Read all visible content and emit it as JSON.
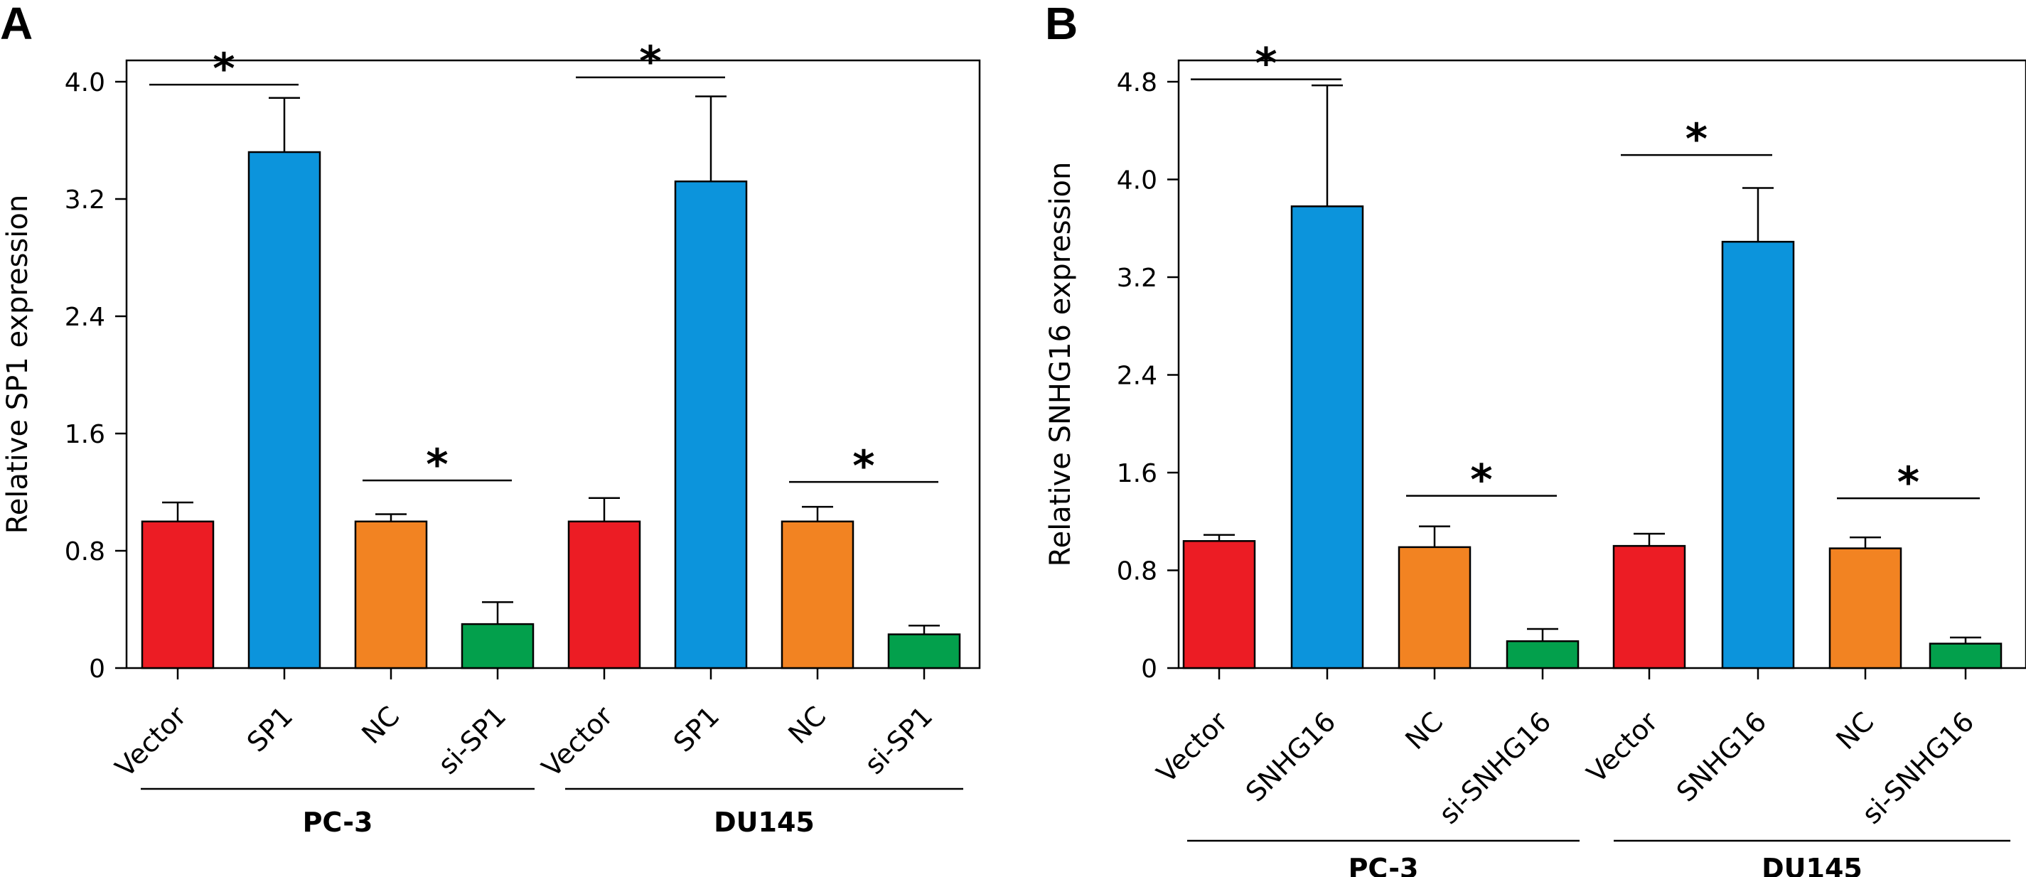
{
  "chart_data": [
    {
      "panel": "A",
      "type": "bar",
      "categories": [
        "Vector",
        "SP1",
        "NC",
        "si-SP1",
        "Vector",
        "SP1",
        "NC",
        "si-SP1"
      ],
      "groups": [
        {
          "label": "PC-3",
          "members": [
            0,
            1,
            2,
            3
          ]
        },
        {
          "label": "DU145",
          "members": [
            4,
            5,
            6,
            7
          ]
        }
      ],
      "values": [
        1.0,
        3.52,
        1.0,
        0.3,
        1.0,
        3.32,
        1.0,
        0.23
      ],
      "errors": [
        0.13,
        0.37,
        0.05,
        0.15,
        0.16,
        0.58,
        0.1,
        0.06
      ],
      "colors": [
        "#ec1c24",
        "#0c94dc",
        "#f28322",
        "#03a04c",
        "#ec1c24",
        "#0c94dc",
        "#f28322",
        "#03a04c"
      ],
      "ylabel": "Relative SP1 expression",
      "ylim": [
        0,
        4.0
      ],
      "yticks": [
        0,
        0.8,
        1.6,
        2.4,
        3.2,
        4.0
      ],
      "ytick_labels": [
        "0",
        "0.8",
        "1.6",
        "2.4",
        "3.2",
        "4.0"
      ],
      "significance": [
        {
          "from": 0,
          "to": 1,
          "label": "*",
          "y": 3.98
        },
        {
          "from": 2,
          "to": 3,
          "label": "*",
          "y": 1.28
        },
        {
          "from": 4,
          "to": 5,
          "label": "*",
          "y": 4.03
        },
        {
          "from": 6,
          "to": 7,
          "label": "*",
          "y": 1.27
        }
      ]
    },
    {
      "panel": "B",
      "type": "bar",
      "categories": [
        "Vector",
        "SNHG16",
        "NC",
        "si-SNHG16",
        "Vector",
        "SNHG16",
        "NC",
        "si-SNHG16"
      ],
      "groups": [
        {
          "label": "PC-3",
          "members": [
            0,
            1,
            2,
            3
          ]
        },
        {
          "label": "DU145",
          "members": [
            4,
            5,
            6,
            7
          ]
        }
      ],
      "values": [
        1.04,
        3.78,
        0.99,
        0.22,
        1.0,
        3.49,
        0.98,
        0.2
      ],
      "errors": [
        0.05,
        0.99,
        0.17,
        0.1,
        0.1,
        0.44,
        0.09,
        0.05
      ],
      "colors": [
        "#ec1c24",
        "#0c94dc",
        "#f28322",
        "#03a04c",
        "#ec1c24",
        "#0c94dc",
        "#f28322",
        "#03a04c"
      ],
      "ylabel": "Relative SNHG16 expression",
      "ylim": [
        0,
        4.8
      ],
      "yticks": [
        0,
        0.8,
        1.6,
        2.4,
        3.2,
        4.0,
        4.8
      ],
      "ytick_labels": [
        "0",
        "0.8",
        "1.6",
        "2.4",
        "3.2",
        "4.0",
        "4.8"
      ],
      "significance": [
        {
          "from": 0,
          "to": 1,
          "label": "*",
          "y": 4.82
        },
        {
          "from": 2,
          "to": 3,
          "label": "*",
          "y": 1.41
        },
        {
          "from": 4,
          "to": 5,
          "label": "*",
          "y": 4.2
        },
        {
          "from": 6,
          "to": 7,
          "label": "*",
          "y": 1.39
        }
      ]
    }
  ]
}
